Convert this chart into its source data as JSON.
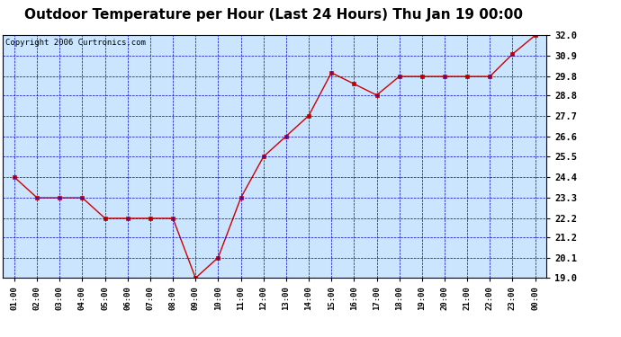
{
  "title": "Outdoor Temperature per Hour (Last 24 Hours) Thu Jan 19 00:00",
  "copyright": "Copyright 2006 Curtronics.com",
  "x_labels": [
    "01:00",
    "02:00",
    "03:00",
    "04:00",
    "05:00",
    "06:00",
    "07:00",
    "08:00",
    "09:00",
    "10:00",
    "11:00",
    "12:00",
    "13:00",
    "14:00",
    "15:00",
    "16:00",
    "17:00",
    "18:00",
    "19:00",
    "20:00",
    "21:00",
    "22:00",
    "23:00",
    "00:00"
  ],
  "y_values": [
    24.4,
    23.3,
    23.3,
    23.3,
    22.2,
    22.2,
    22.2,
    22.2,
    19.0,
    20.1,
    23.3,
    25.5,
    26.6,
    27.7,
    30.0,
    29.4,
    28.8,
    29.8,
    29.8,
    29.8,
    29.8,
    29.8,
    31.0,
    32.0
  ],
  "ylim_min": 19.0,
  "ylim_max": 32.0,
  "y_ticks": [
    19.0,
    20.1,
    21.2,
    22.2,
    23.3,
    24.4,
    25.5,
    26.6,
    27.7,
    28.8,
    29.8,
    30.9,
    32.0
  ],
  "y_tick_labels": [
    "19.0",
    "20.1",
    "21.2",
    "22.2",
    "23.3",
    "24.4",
    "25.5",
    "26.6",
    "27.7",
    "28.8",
    "29.8",
    "30.9",
    "32.0"
  ],
  "line_color": "#cc0000",
  "marker_color": "#cc0000",
  "plot_bg_color": "#cce5ff",
  "grid_color": "#0000cc",
  "outer_bg": "#ffffff",
  "title_fontsize": 11,
  "copyright_fontsize": 6.5
}
